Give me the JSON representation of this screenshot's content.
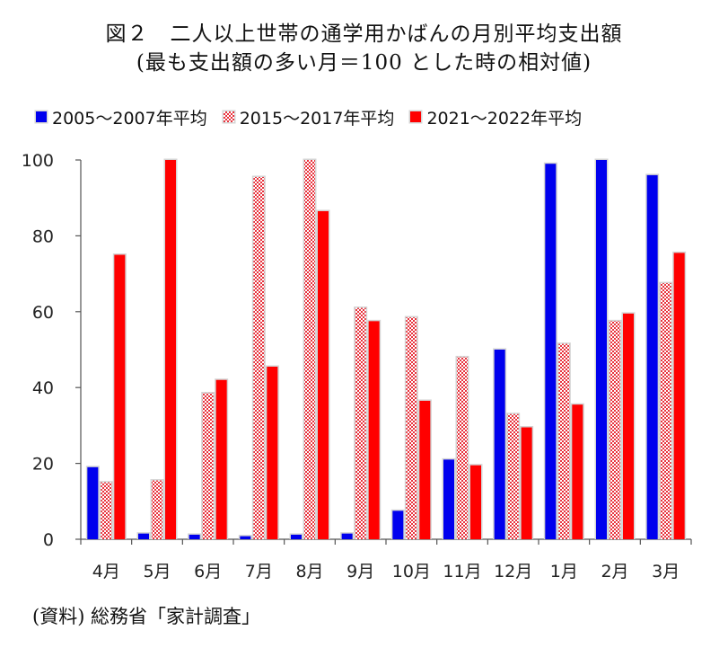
{
  "title": "図２　二人以上世帯の通学用かばんの月別平均支出額",
  "subtitle": "(最も支出額の多い月＝100 とした時の相対値)",
  "source": "(資料) 総務省「家計調査」",
  "colors": {
    "series_1": "#0000ee",
    "series_2_pattern": "#e8323c",
    "series_2_background": "#ffffff",
    "series_3": "#ff0000",
    "bar_shadow": "#d4d4d4",
    "axis": "#555555"
  },
  "chart_data": {
    "type": "bar",
    "legend_position": "top",
    "grid": false,
    "ylim": [
      0,
      100
    ],
    "yticks": [
      0,
      20,
      40,
      60,
      80,
      100
    ],
    "categories": [
      "4月",
      "5月",
      "6月",
      "7月",
      "8月",
      "9月",
      "10月",
      "11月",
      "12月",
      "1月",
      "2月",
      "3月"
    ],
    "series": [
      {
        "name": "2005～2007年平均",
        "style": "solid-blue",
        "values": [
          19,
          1.5,
          1.2,
          0.8,
          1.2,
          1.5,
          7.5,
          21,
          50,
          99,
          100,
          96
        ]
      },
      {
        "name": "2015～2017年平均",
        "style": "red-checker-pattern",
        "values": [
          15,
          15.5,
          38.5,
          95.5,
          100,
          61,
          58.5,
          48,
          33,
          51.5,
          57.5,
          67.5
        ]
      },
      {
        "name": "2021～2022年平均",
        "style": "solid-red",
        "values": [
          75,
          100,
          42,
          45.5,
          86.5,
          57.5,
          36.5,
          19.5,
          29.5,
          35.5,
          59.5,
          75.5
        ]
      }
    ]
  }
}
